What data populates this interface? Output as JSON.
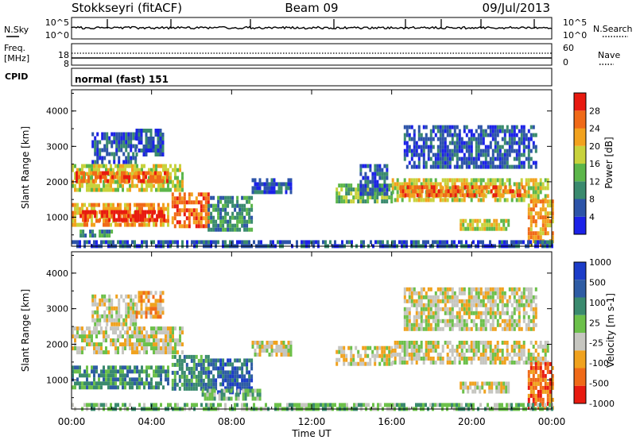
{
  "header": {
    "station": "Stokkseyri (fitACF)",
    "beam": "Beam 09",
    "date": "09/Jul/2013"
  },
  "noise_panel": {
    "left_label": "N.Sky",
    "right_label": "N.Search",
    "left_ticks": [
      "10^5",
      "10^0"
    ],
    "right_ticks": [
      "10^5",
      "10^0"
    ]
  },
  "freq_panel": {
    "left_label_1": "Freq.",
    "left_label_2": "[MHz]",
    "left_ticks": [
      "18",
      "8"
    ],
    "right_ticks": [
      "60",
      "0"
    ],
    "right_label": "Nave"
  },
  "cpid_panel": {
    "label": "CPID",
    "text": "normal (fast) 151"
  },
  "x_axis": {
    "label": "Time UT",
    "ticks": [
      "00:00",
      "04:00",
      "08:00",
      "12:00",
      "16:00",
      "20:00",
      "00:00"
    ]
  },
  "colors": {
    "power_scale": [
      "#1c22e8",
      "#2d54a8",
      "#3a8a6e",
      "#5cb64a",
      "#c8d23c",
      "#f2a21e",
      "#f06a18",
      "#e81a10"
    ],
    "velocity_scale": [
      "#1c3cc8",
      "#2e5ca4",
      "#3a8a6e",
      "#6cc04a",
      "#c6c6c0",
      "#f0a21e",
      "#f06a18",
      "#e81a10"
    ]
  },
  "chart_data": [
    {
      "type": "heatmap",
      "title": "",
      "xlabel": "Time UT",
      "ylabel": "Slant Range [km]",
      "yticks": [
        "1000",
        "2000",
        "3000",
        "4000"
      ],
      "colorbar_label": "Power [dB]",
      "colorbar_ticks": [
        "4",
        "8",
        "12",
        "16",
        "20",
        "24",
        "28"
      ],
      "xlim_hours": [
        0,
        24
      ],
      "ylim_km": [
        180,
        4600
      ],
      "regions": [
        {
          "t0": 0.0,
          "t1": 5.6,
          "r0": 1800,
          "r1": 2500,
          "level": 4
        },
        {
          "t0": 0.2,
          "t1": 4.8,
          "r0": 2050,
          "r1": 2300,
          "level": 6
        },
        {
          "t0": 1.0,
          "t1": 3.2,
          "r0": 2600,
          "r1": 3400,
          "level": 1
        },
        {
          "t0": 3.2,
          "t1": 4.6,
          "r0": 2800,
          "r1": 3500,
          "level": 1
        },
        {
          "t0": 0.0,
          "t1": 4.8,
          "r0": 800,
          "r1": 1400,
          "level": 5
        },
        {
          "t0": 0.4,
          "t1": 4.6,
          "r0": 950,
          "r1": 1200,
          "level": 7
        },
        {
          "t0": 5.0,
          "t1": 6.8,
          "r0": 800,
          "r1": 1700,
          "level": 6
        },
        {
          "t0": 6.8,
          "t1": 9.0,
          "r0": 700,
          "r1": 1600,
          "level": 2
        },
        {
          "t0": 0.4,
          "t1": 2.0,
          "r0": 500,
          "r1": 650,
          "level": 2
        },
        {
          "t0": 9.0,
          "t1": 11.0,
          "r0": 1700,
          "r1": 2100,
          "level": 1
        },
        {
          "t0": 13.2,
          "t1": 16.0,
          "r0": 1450,
          "r1": 1950,
          "level": 3
        },
        {
          "t0": 14.4,
          "t1": 15.8,
          "r0": 1650,
          "r1": 2500,
          "level": 1
        },
        {
          "t0": 16.0,
          "t1": 23.8,
          "r0": 1500,
          "r1": 2100,
          "level": 4
        },
        {
          "t0": 16.4,
          "t1": 22.6,
          "r0": 1650,
          "r1": 1900,
          "level": 6
        },
        {
          "t0": 16.6,
          "t1": 23.2,
          "r0": 2400,
          "r1": 3600,
          "level": 1
        },
        {
          "t0": 19.4,
          "t1": 21.8,
          "r0": 700,
          "r1": 950,
          "level": 4
        },
        {
          "t0": 22.8,
          "t1": 24.0,
          "r0": 250,
          "r1": 1500,
          "level": 5
        },
        {
          "t0": 0.0,
          "t1": 24.0,
          "r0": 180,
          "r1": 350,
          "level": 1
        }
      ]
    },
    {
      "type": "heatmap",
      "title": "",
      "xlabel": "Time UT",
      "ylabel": "Slant Range [km]",
      "yticks": [
        "1000",
        "2000",
        "3000",
        "4000"
      ],
      "colorbar_label": "Velocity [m s-1]",
      "colorbar_ticks": [
        "1000",
        "500",
        "100",
        "25",
        "-25",
        "-100",
        "-500",
        "-1000"
      ],
      "xlim_hours": [
        0,
        24
      ],
      "ylim_km": [
        180,
        4600
      ],
      "regions": [
        {
          "t0": 0.0,
          "t1": 5.6,
          "r0": 1800,
          "r1": 2500,
          "level": 4
        },
        {
          "t0": 1.0,
          "t1": 3.2,
          "r0": 2600,
          "r1": 3400,
          "level": 4
        },
        {
          "t0": 3.2,
          "t1": 4.6,
          "r0": 2800,
          "r1": 3500,
          "level": 5
        },
        {
          "t0": 0.0,
          "t1": 4.8,
          "r0": 800,
          "r1": 1400,
          "level": 2
        },
        {
          "t0": 5.0,
          "t1": 6.8,
          "r0": 800,
          "r1": 1700,
          "level": 2
        },
        {
          "t0": 6.8,
          "t1": 9.0,
          "r0": 700,
          "r1": 1600,
          "level": 1
        },
        {
          "t0": 6.5,
          "t1": 9.4,
          "r0": 500,
          "r1": 750,
          "level": 3
        },
        {
          "t0": 9.0,
          "t1": 11.0,
          "r0": 1700,
          "r1": 2100,
          "level": 4
        },
        {
          "t0": 13.2,
          "t1": 16.0,
          "r0": 1450,
          "r1": 1950,
          "level": 4
        },
        {
          "t0": 16.0,
          "t1": 23.8,
          "r0": 1500,
          "r1": 2100,
          "level": 4
        },
        {
          "t0": 16.6,
          "t1": 23.2,
          "r0": 2400,
          "r1": 3600,
          "level": 4
        },
        {
          "t0": 19.4,
          "t1": 21.8,
          "r0": 700,
          "r1": 950,
          "level": 4
        },
        {
          "t0": 22.8,
          "t1": 24.0,
          "r0": 250,
          "r1": 1500,
          "level": 6
        },
        {
          "t0": 0.0,
          "t1": 24.0,
          "r0": 180,
          "r1": 350,
          "level": 3
        }
      ]
    }
  ]
}
